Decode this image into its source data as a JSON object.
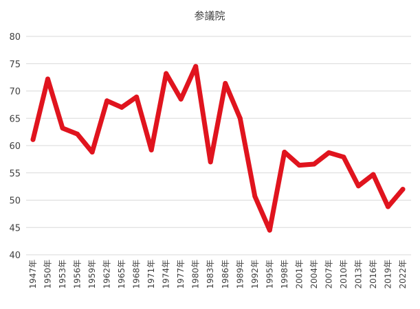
{
  "chart_data": {
    "type": "line",
    "title": "参議院",
    "xlabel": "",
    "ylabel": "",
    "ylim": [
      40,
      80
    ],
    "yticks": [
      "40",
      "45",
      "50",
      "55",
      "60",
      "65",
      "70",
      "75",
      "80"
    ],
    "categories": [
      "1947年",
      "1950年",
      "1953年",
      "1956年",
      "1959年",
      "1962年",
      "1965年",
      "1968年",
      "1971年",
      "1974年",
      "1977年",
      "1980年",
      "1983年",
      "1986年",
      "1989年",
      "1992年",
      "1995年",
      "1998年",
      "2001年",
      "2004年",
      "2007年",
      "2010年",
      "2013年",
      "2016年",
      "2019年",
      "2022年"
    ],
    "series": [
      {
        "values": [
          61.1,
          72.2,
          63.2,
          62.1,
          58.8,
          68.2,
          67.0,
          68.9,
          59.2,
          73.2,
          68.5,
          74.5,
          57.0,
          71.4,
          65.0,
          50.7,
          44.5,
          58.8,
          56.4,
          56.6,
          58.7,
          57.9,
          52.6,
          54.7,
          48.8,
          52.0
        ],
        "color": "#e0141e"
      }
    ],
    "grid": true,
    "legend": "none"
  }
}
